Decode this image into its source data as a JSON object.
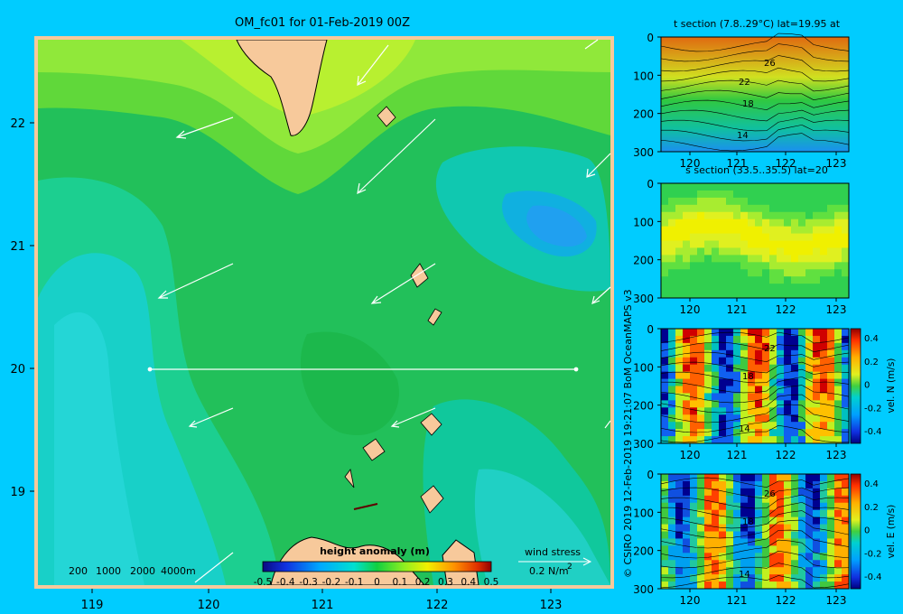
{
  "title": "OM_fc01 for 01-Feb-2019 00Z",
  "colors": {
    "background": "#00ccff",
    "land": "#f7c99b",
    "vector": "#ffffff",
    "contour": "#000000"
  },
  "map": {
    "lon_range": [
      118.5,
      123.5
    ],
    "lat_range": [
      18.25,
      22.75
    ],
    "lon_ticks": [
      "119",
      "120",
      "121",
      "122",
      "123"
    ],
    "lat_ticks": [
      "22",
      "21",
      "20",
      "19"
    ],
    "section_line": {
      "lat": 20,
      "lon_start": 119.5,
      "lon_end": 123.2
    },
    "depth_legend": [
      "200",
      "1000",
      "2000",
      "4000m"
    ],
    "wind_legend": {
      "title": "wind stress",
      "value": "0.2 N/m",
      "superscript": "2"
    }
  },
  "colorbar": {
    "title": "height anomaly (m)",
    "ticks": [
      "-0.5",
      "-0.4",
      "-0.3",
      "-0.2",
      "-0.1",
      "0",
      "0.1",
      "0.2",
      "0.3",
      "0.4",
      "0.5"
    ]
  },
  "credit": "© CSIRO 2019   12-Feb-2019 19:21:07 BoM OceanMAPS v3",
  "sections": [
    {
      "title": "t section (7.8..29°C) lat=19.95 at",
      "y_ticks": [
        "0",
        "100",
        "200",
        "300"
      ],
      "x_ticks": [
        "120",
        "121",
        "122",
        "123"
      ],
      "contour_labels": [
        "26",
        "22",
        "18",
        "14"
      ],
      "colorbar": null
    },
    {
      "title": "s section (33.5..35.5) lat=20",
      "y_ticks": [
        "0",
        "100",
        "200",
        "300"
      ],
      "x_ticks": [
        "120",
        "121",
        "122",
        "123"
      ],
      "contour_labels": [],
      "colorbar": null
    },
    {
      "title": "",
      "y_ticks": [
        "0",
        "100",
        "200",
        "300"
      ],
      "x_ticks": [
        "120",
        "121",
        "122",
        "123"
      ],
      "contour_labels": [
        "22",
        "18",
        "14"
      ],
      "colorbar": {
        "label": "vel. N  (m/s)",
        "ticks": [
          "0.4",
          "0.2",
          "0",
          "-0.2",
          "-0.4"
        ]
      }
    },
    {
      "title": "",
      "y_ticks": [
        "0",
        "100",
        "200",
        "300"
      ],
      "x_ticks": [
        "120",
        "121",
        "122",
        "123"
      ],
      "contour_labels": [
        "26",
        "18",
        "14"
      ],
      "colorbar": {
        "label": "vel. E  (m/s)",
        "ticks": [
          "0.4",
          "0.2",
          "0",
          "-0.2",
          "-0.4"
        ]
      }
    }
  ]
}
